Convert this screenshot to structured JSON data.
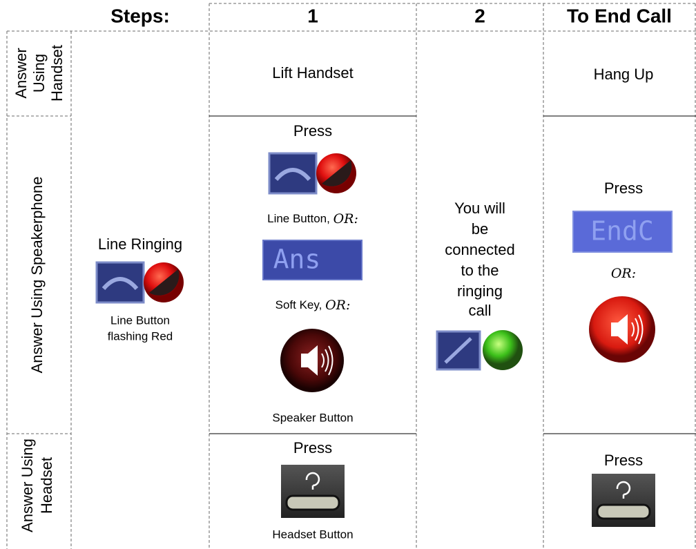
{
  "header": [
    "Steps:",
    "1",
    "2",
    "To End Call"
  ],
  "row_labels": [
    [
      "Answer",
      "Using",
      "Handset"
    ],
    [
      "Answer Using Speakerphone"
    ],
    [
      "Answer Using",
      "Headset"
    ]
  ],
  "steps": {
    "title": "Line Ringing",
    "caption": [
      "Line Button",
      "flashing Red"
    ]
  },
  "step1": {
    "handset": "Lift Handset",
    "speaker": {
      "press": "Press",
      "line_button": "Line Button, ",
      "or1": "OR:",
      "soft_key_label": "Ans",
      "soft_key": "Soft Key, ",
      "or2": "OR:",
      "speaker_button": "Speaker Button"
    },
    "headset": {
      "press": "Press",
      "caption": "Headset Button"
    }
  },
  "step2": [
    "You will",
    "be",
    "connected",
    "to the",
    "ringing",
    "call"
  ],
  "end_call": {
    "handset": "Hang Up",
    "speaker": {
      "press": "Press",
      "soft_key_label": "EndC",
      "or": "OR:"
    },
    "headset": {
      "press": "Press"
    }
  }
}
